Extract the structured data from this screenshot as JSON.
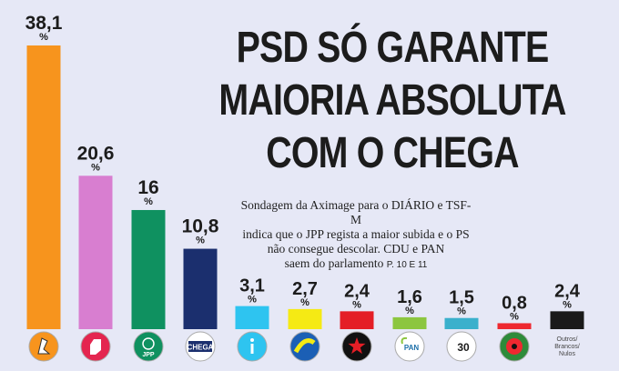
{
  "headline": {
    "line1": "PSD SÓ GARANTE",
    "line2": "MAIORIA ABSOLUTA",
    "line3": "COM O CHEGA"
  },
  "subtitle": {
    "line1": "Sondagem da Aximage para o DIÁRIO e TSF-M",
    "line2": "indica que o JPP regista a maior subida e o PS",
    "line3": "não consegue descolar. CDU e PAN",
    "line4": "saem do parlamento",
    "ref": "P. 10 E 11"
  },
  "chart_data": {
    "type": "bar",
    "unit": "%",
    "categories": [
      "PSD",
      "PS",
      "JPP",
      "CHEGA",
      "IL",
      "CDS",
      "BE",
      "PAN",
      "PTP",
      "CDU",
      "Outros/Brancos/Nulos"
    ],
    "values": [
      38.1,
      20.6,
      16,
      10.8,
      3.1,
      2.7,
      2.4,
      1.6,
      1.5,
      0.8,
      2.4
    ],
    "value_labels": [
      "38,1",
      "20,6",
      "16",
      "10,8",
      "3,1",
      "2,7",
      "2,4",
      "1,6",
      "1,5",
      "0,8",
      "2,4"
    ],
    "colors": [
      "#f7941d",
      "#d87ed0",
      "#0f9160",
      "#1b2f6e",
      "#2ec4f0",
      "#f5ea14",
      "#e41e26",
      "#8cc63f",
      "#3ab0cc",
      "#ee2830",
      "#1a1a1a"
    ],
    "logos": [
      "psd-logo",
      "ps-logo",
      "jpp-logo",
      "chega-logo",
      "il-logo",
      "cds-logo",
      "be-logo",
      "pan-logo",
      "ptp-logo",
      "cdu-logo",
      "none"
    ],
    "logo_texts": {
      "jpp": "JPP",
      "chega": "CHEGA",
      "pan": "PAN",
      "ptp": "30",
      "others": [
        "Outros/",
        "Brancos/",
        "Nulos"
      ]
    },
    "ylim": [
      0,
      38.1
    ],
    "grid": false,
    "legend": "none"
  }
}
